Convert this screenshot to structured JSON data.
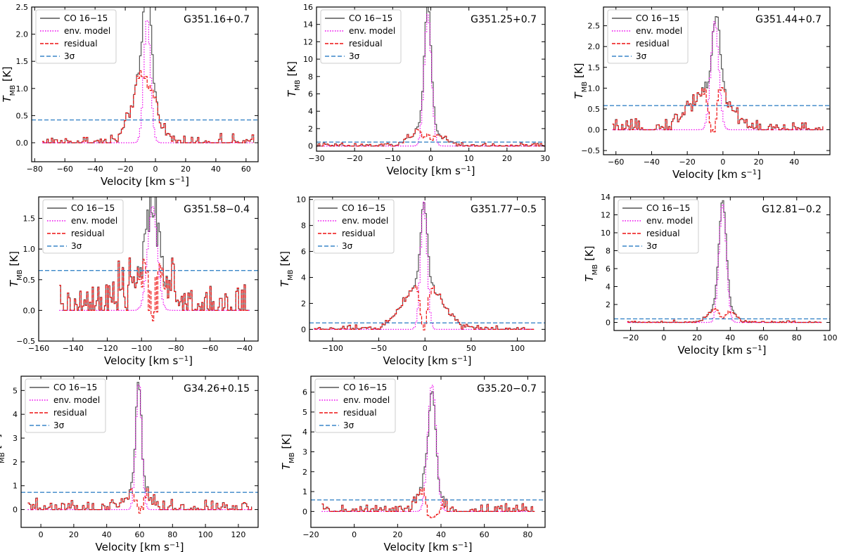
{
  "figure": {
    "legend": {
      "co": "CO 16−15",
      "env": "env. model",
      "residual": "residual",
      "sigma": "3σ"
    },
    "xlabel": "Velocity [km s",
    "xlabel_sup": "−1",
    "xlabel_end": "]",
    "ylabel_main": "T",
    "ylabel_sub": "MB",
    "ylabel_end": " [K]"
  },
  "colors": {
    "co": "#555555",
    "env": "#ee00ee",
    "residual": "#ee1111",
    "sigma": "#3a86c8"
  },
  "chart_data": [
    {
      "type": "line",
      "title": "G351.16+0.7",
      "xlim": [
        -82,
        68
      ],
      "ylim": [
        -0.35,
        2.5
      ],
      "xticks": [
        -80,
        -60,
        -40,
        -20,
        0,
        20,
        40,
        60
      ],
      "yticks": [
        0.0,
        0.5,
        1.0,
        1.5,
        2.0,
        2.5
      ],
      "ytick_labels": [
        "0.0",
        "0.5",
        "1.0",
        "1.5",
        "2.0",
        "2.5"
      ],
      "x_range": [
        -75,
        65
      ],
      "components": [
        {
          "center": -6,
          "amp": 2.15,
          "sigma": 2.2
        },
        {
          "center": -8,
          "amp": 1.3,
          "sigma": 7.5
        }
      ],
      "env": {
        "center": -6,
        "amp": 2.3,
        "sigma": 2.2
      },
      "noise": 0.07,
      "sigma_level": 0.42
    },
    {
      "type": "line",
      "title": "G351.25+0.7",
      "xlim": [
        -30,
        30
      ],
      "ylim": [
        -0.6,
        16
      ],
      "xticks": [
        -30,
        -20,
        -10,
        0,
        10,
        20,
        30
      ],
      "yticks": [
        0,
        2,
        4,
        6,
        8,
        10,
        12,
        14,
        16
      ],
      "ytick_labels": [
        "0",
        "2",
        "4",
        "6",
        "8",
        "10",
        "12",
        "14",
        "16"
      ],
      "x_range": [
        -30,
        30
      ],
      "components": [
        {
          "center": -1,
          "amp": 14.2,
          "sigma": 0.9
        },
        {
          "center": -1.5,
          "amp": 2.2,
          "sigma": 3.5
        }
      ],
      "env": {
        "center": -1,
        "amp": 15.2,
        "sigma": 0.95
      },
      "noise": 0.18,
      "sigma_level": 0.45
    },
    {
      "type": "line",
      "title": "G351.44+0.7",
      "xlim": [
        -67,
        60
      ],
      "ylim": [
        -0.6,
        2.95
      ],
      "xticks": [
        -60,
        -40,
        -20,
        0,
        20,
        40
      ],
      "yticks": [
        -0.5,
        0.0,
        0.5,
        1.0,
        1.5,
        2.0,
        2.5
      ],
      "ytick_labels": [
        "−0.5",
        "0.0",
        "0.5",
        "1.0",
        "1.5",
        "2.0",
        "2.5"
      ],
      "x_range": [
        -62,
        56
      ],
      "components": [
        {
          "center": -4,
          "amp": 1.75,
          "sigma": 2.3
        },
        {
          "center": -8,
          "amp": 1.0,
          "sigma": 11
        }
      ],
      "env": {
        "center": -5,
        "amp": 2.6,
        "sigma": 2.2
      },
      "noise": 0.1,
      "sigma_level": 0.58
    },
    {
      "type": "line",
      "title": "G351.58−0.4",
      "xlim": [
        -160,
        -32
      ],
      "ylim": [
        -0.5,
        1.85
      ],
      "xticks": [
        -160,
        -140,
        -120,
        -100,
        -80,
        -60,
        -40
      ],
      "yticks": [
        -0.5,
        0.0,
        0.5,
        1.0,
        1.5
      ],
      "ytick_labels": [
        "−0.5",
        "0.0",
        "0.5",
        "1.0",
        "1.5"
      ],
      "x_range": [
        -148,
        -37
      ],
      "components": [
        {
          "center": -93,
          "amp": 1.05,
          "sigma": 3.0
        },
        {
          "center": -96,
          "amp": 0.75,
          "sigma": 11
        }
      ],
      "env": {
        "center": -94,
        "amp": 1.7,
        "sigma": 2.8
      },
      "noise": 0.22,
      "sigma_level": 0.65
    },
    {
      "type": "line",
      "title": "G351.77−0.5",
      "xlim": [
        -125,
        130
      ],
      "ylim": [
        -0.9,
        10.2
      ],
      "xticks": [
        -100,
        -50,
        0,
        50,
        100
      ],
      "yticks": [
        0,
        2,
        4,
        6,
        8,
        10
      ],
      "ytick_labels": [
        "0",
        "2",
        "4",
        "6",
        "8",
        "10"
      ],
      "x_range": [
        -120,
        118
      ],
      "components": [
        {
          "center": -2,
          "amp": 6.2,
          "sigma": 3.5
        },
        {
          "center": -3,
          "amp": 3.7,
          "sigma": 20
        }
      ],
      "env": {
        "center": -2,
        "amp": 9.8,
        "sigma": 3.5
      },
      "noise": 0.15,
      "sigma_level": 0.5
    },
    {
      "type": "line",
      "title": "G12.81−0.2",
      "xlim": [
        -30,
        100
      ],
      "ylim": [
        -0.9,
        14
      ],
      "xticks": [
        -20,
        0,
        20,
        40,
        60,
        80,
        100
      ],
      "yticks": [
        0,
        2,
        4,
        6,
        8,
        10,
        12,
        14
      ],
      "ytick_labels": [
        "0",
        "2",
        "4",
        "6",
        "8",
        "10",
        "12",
        "14"
      ],
      "x_range": [
        -22,
        95
      ],
      "components": [
        {
          "center": 35,
          "amp": 11.4,
          "sigma": 2.2
        },
        {
          "center": 34,
          "amp": 2.2,
          "sigma": 6
        }
      ],
      "env": {
        "center": 35,
        "amp": 13.2,
        "sigma": 2.2
      },
      "noise": 0.1,
      "sigma_level": 0.4
    },
    {
      "type": "line",
      "title": "G34.26+0.15",
      "xlim": [
        -12,
        132
      ],
      "ylim": [
        -0.75,
        5.6
      ],
      "xticks": [
        0,
        20,
        40,
        60,
        80,
        100,
        120
      ],
      "yticks": [
        0,
        1,
        2,
        3,
        4,
        5
      ],
      "ytick_labels": [
        "0",
        "1",
        "2",
        "3",
        "4",
        "5"
      ],
      "x_range": [
        -8,
        128
      ],
      "components": [
        {
          "center": 59,
          "amp": 4.4,
          "sigma": 1.8
        },
        {
          "center": 58,
          "amp": 1.0,
          "sigma": 6
        }
      ],
      "env": {
        "center": 59,
        "amp": 5.4,
        "sigma": 1.8
      },
      "noise": 0.2,
      "sigma_level": 0.72
    },
    {
      "type": "line",
      "title": "G35.20−0.7",
      "xlim": [
        -20,
        88
      ],
      "ylim": [
        -0.8,
        6.8
      ],
      "xticks": [
        -20,
        0,
        20,
        40,
        60,
        80
      ],
      "yticks": [
        0,
        1,
        2,
        3,
        4,
        5,
        6
      ],
      "ytick_labels": [
        "0",
        "1",
        "2",
        "3",
        "4",
        "5",
        "6"
      ],
      "x_range": [
        -15,
        83
      ],
      "components": [
        {
          "center": 35,
          "amp": 3.0,
          "sigma": 2.2
        },
        {
          "center": 34,
          "amp": 1.0,
          "sigma": 5
        }
      ],
      "env": {
        "center": 35.5,
        "amp": 6.4,
        "sigma": 1.9
      },
      "noise": 0.2,
      "sigma_level": 0.58
    }
  ]
}
